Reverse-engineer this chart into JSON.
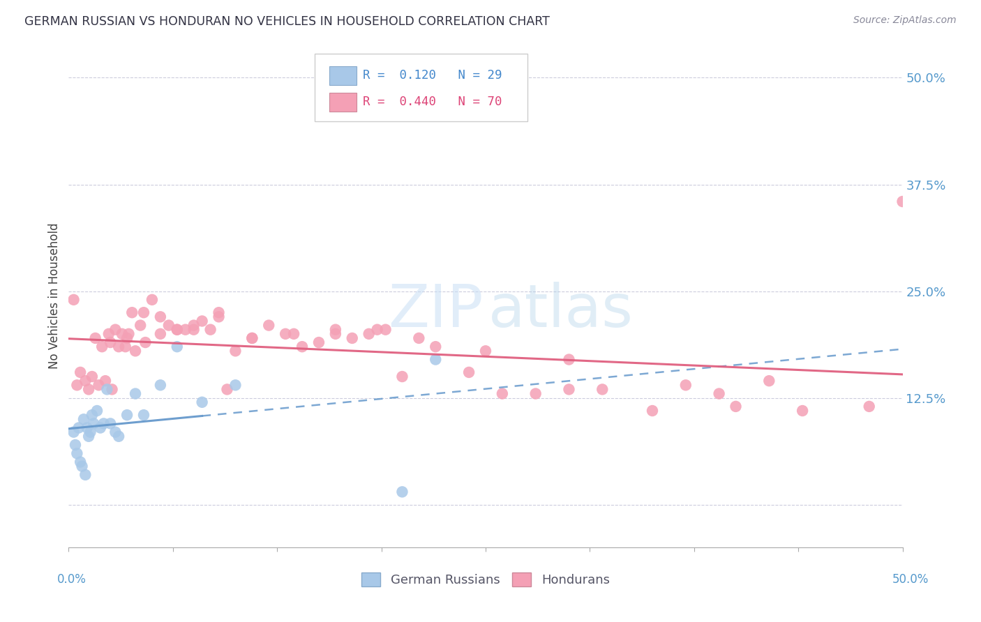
{
  "title": "GERMAN RUSSIAN VS HONDURAN NO VEHICLES IN HOUSEHOLD CORRELATION CHART",
  "source": "Source: ZipAtlas.com",
  "ylabel": "No Vehicles in Household",
  "xrange": [
    0.0,
    50.0
  ],
  "yrange": [
    -5.0,
    54.0
  ],
  "ytick_values": [
    0.0,
    12.5,
    25.0,
    37.5,
    50.0
  ],
  "ytick_labels": [
    "",
    "12.5%",
    "25.0%",
    "37.5%",
    "50.0%"
  ],
  "color_blue": "#a8c8e8",
  "color_pink": "#f4a0b5",
  "color_blue_line": "#6699cc",
  "color_pink_line": "#e06080",
  "gr_x": [
    0.3,
    0.4,
    0.5,
    0.6,
    0.7,
    0.8,
    0.9,
    1.0,
    1.1,
    1.2,
    1.3,
    1.4,
    1.5,
    1.7,
    1.9,
    2.1,
    2.3,
    2.5,
    2.8,
    3.0,
    3.5,
    4.0,
    4.5,
    5.5,
    6.5,
    8.0,
    10.0,
    20.0,
    22.0
  ],
  "gr_y": [
    8.5,
    7.0,
    6.0,
    9.0,
    5.0,
    4.5,
    10.0,
    3.5,
    9.0,
    8.0,
    8.5,
    10.5,
    9.5,
    11.0,
    9.0,
    9.5,
    13.5,
    9.5,
    8.5,
    8.0,
    10.5,
    13.0,
    10.5,
    14.0,
    18.5,
    12.0,
    14.0,
    1.5,
    17.0
  ],
  "hond_x": [
    0.3,
    0.5,
    0.7,
    1.0,
    1.2,
    1.4,
    1.6,
    1.8,
    2.0,
    2.2,
    2.4,
    2.6,
    2.8,
    3.0,
    3.2,
    3.4,
    3.6,
    3.8,
    4.0,
    4.3,
    4.6,
    5.0,
    5.5,
    6.0,
    6.5,
    7.0,
    7.5,
    8.0,
    8.5,
    9.0,
    9.5,
    10.0,
    11.0,
    12.0,
    13.0,
    14.0,
    15.0,
    16.0,
    17.0,
    18.0,
    19.0,
    20.0,
    22.0,
    24.0,
    26.0,
    28.0,
    30.0,
    32.0,
    35.0,
    37.0,
    39.0,
    40.0,
    42.0,
    44.0,
    48.0,
    50.0,
    2.5,
    3.5,
    4.5,
    5.5,
    6.5,
    7.5,
    9.0,
    11.0,
    13.5,
    16.0,
    18.5,
    21.0,
    25.0,
    30.0
  ],
  "hond_y": [
    24.0,
    14.0,
    15.5,
    14.5,
    13.5,
    15.0,
    19.5,
    14.0,
    18.5,
    14.5,
    20.0,
    13.5,
    20.5,
    18.5,
    20.0,
    18.5,
    20.0,
    22.5,
    18.0,
    21.0,
    19.0,
    24.0,
    20.0,
    21.0,
    20.5,
    20.5,
    21.0,
    21.5,
    20.5,
    22.5,
    13.5,
    18.0,
    19.5,
    21.0,
    20.0,
    18.5,
    19.0,
    20.5,
    19.5,
    20.0,
    20.5,
    15.0,
    18.5,
    15.5,
    13.0,
    13.0,
    13.5,
    13.5,
    11.0,
    14.0,
    13.0,
    11.5,
    14.5,
    11.0,
    11.5,
    35.5,
    19.0,
    19.5,
    22.5,
    22.0,
    20.5,
    20.5,
    22.0,
    19.5,
    20.0,
    20.0,
    20.5,
    19.5,
    18.0,
    17.0
  ],
  "legend_blue_r": "R =  0.120",
  "legend_blue_n": "N = 29",
  "legend_pink_r": "R =  0.440",
  "legend_pink_n": "N = 70"
}
